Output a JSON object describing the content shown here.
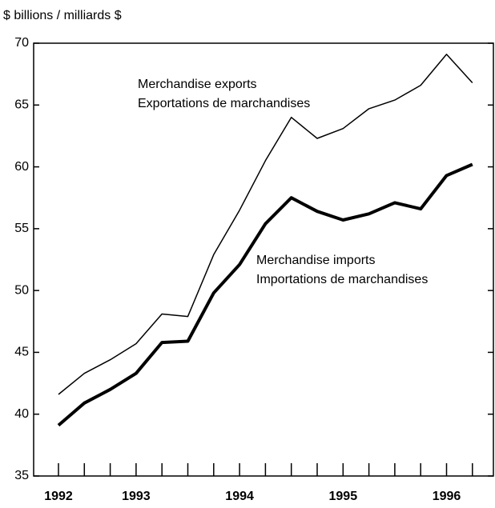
{
  "chart_data": {
    "type": "line",
    "y_label": "$ billions / milliards $",
    "categories": [
      "1992",
      null,
      null,
      "1993",
      null,
      null,
      null,
      "1994",
      null,
      null,
      null,
      "1995",
      null,
      null,
      null,
      "1996",
      null
    ],
    "series": [
      {
        "name": "Merchandise exports\nExportations de marchandises",
        "color": "#000",
        "width": 1.5,
        "values": [
          41.6,
          43.3,
          44.4,
          45.7,
          48.1,
          47.9,
          52.9,
          56.5,
          60.5,
          64.0,
          62.3,
          63.1,
          64.7,
          65.4,
          66.6,
          69.1,
          66.8
        ]
      },
      {
        "name": "Merchandise imports\nImportations de marchandises",
        "color": "#000",
        "width": 4,
        "values": [
          39.1,
          40.9,
          42.0,
          43.3,
          45.8,
          45.9,
          49.8,
          52.1,
          55.4,
          57.5,
          56.4,
          55.7,
          56.2,
          57.1,
          56.6,
          59.3,
          60.2
        ]
      }
    ],
    "ylim": [
      35,
      70
    ],
    "yticks": [
      35,
      40,
      45,
      50,
      55,
      60,
      65,
      70
    ],
    "grid": false
  }
}
